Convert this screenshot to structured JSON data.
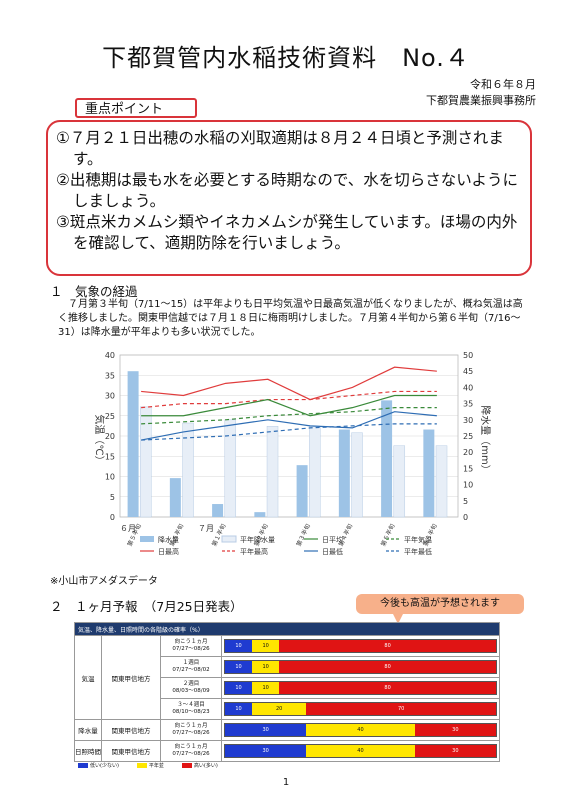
{
  "header": {
    "title": "下都賀管内水稲技術資料　No.４",
    "date": "令和６年８月",
    "org": "下都賀農業振興事務所"
  },
  "key_points": {
    "label": "重点ポイント",
    "items": [
      "①７月２１日出穂の水稲の刈取適期は８月２４日頃と予測されます。",
      "②出穂期は最も水を必要とする時期なので、水を切らさないようにしましょう。",
      "③斑点米カメムシ類やイネカメムシが発生しています。ほ場の内外を確認して、適期防除を行いましょう。"
    ]
  },
  "section1": {
    "heading": "１　気象の経過",
    "para1": "７月第３半旬（7/11～15）は平年よりも日平均気温や日最高気温が低くなりましたが、概ね気温は高く推移しました。関東甲信越では７月１８日に梅雨明けしました。７月第４半旬から第６半旬（7/16～31）は降水量が平年よりも多い状況でした。",
    "source": "※小山市アメダスデータ"
  },
  "chart_data": {
    "type": "bar+line",
    "categories": [
      "第５半旬",
      "第６半旬",
      "第１半旬",
      "第２半旬",
      "第３半旬",
      "第４半旬",
      "第５半旬",
      "第６半旬"
    ],
    "month_labels": [
      "６月",
      "７月"
    ],
    "ylabel_left": "気温（℃）",
    "ylabel_right": "降水量（mm）",
    "ylim_left": [
      0,
      40
    ],
    "ylim_right": [
      0,
      50
    ],
    "left_ticks": [
      "0",
      "5",
      "10",
      "15",
      "20",
      "25",
      "30",
      "35",
      "40"
    ],
    "right_ticks": [
      "0",
      "5",
      "10",
      "15",
      "20",
      "25",
      "30",
      "35",
      "40",
      "45",
      "50"
    ],
    "precip": [
      45,
      12,
      4,
      1.5,
      16,
      27,
      36,
      27
    ],
    "precip_normal": [
      34,
      29,
      30,
      28,
      28,
      26,
      22,
      22
    ],
    "tmax": [
      31,
      30,
      33,
      34,
      29,
      32,
      37,
      36
    ],
    "tmax_normal": [
      27,
      28,
      28,
      29,
      29,
      30,
      31,
      31
    ],
    "tavg": [
      25,
      25,
      27,
      29,
      25,
      27,
      30,
      30
    ],
    "tavg_normal": [
      23,
      23.5,
      24,
      25,
      25.5,
      26,
      27,
      27
    ],
    "tmin": [
      19,
      21,
      22.5,
      24,
      22.5,
      22,
      26,
      25
    ],
    "tmin_normal": [
      19,
      19.5,
      20,
      21,
      22,
      22.5,
      23,
      23
    ],
    "legend": [
      "降水量",
      "平年降水量",
      "日平均",
      "平年気温",
      "日最高",
      "平年最高",
      "日最低",
      "平年最低"
    ],
    "colors": {
      "precip": "#9dc3e6",
      "tmax": "#e03c3c",
      "tavg": "#3a8a3a",
      "tmin": "#2e6db4"
    }
  },
  "section2": {
    "heading": "２　１ヶ月予報　（7月25日発表）",
    "callout": "今後も高温が予想されます",
    "table_title": "気温、降水量、日照時間の各階級の確率（%）",
    "rows": [
      {
        "cat": "気温",
        "region": "関東甲信地方",
        "period": "向こう１ヵ月",
        "dates": "07/27～08/26",
        "low": 10,
        "normal": 10,
        "high": 80
      },
      {
        "cat": "",
        "region": "",
        "period": "１週目",
        "dates": "07/27～08/02",
        "low": 10,
        "normal": 10,
        "high": 80
      },
      {
        "cat": "",
        "region": "",
        "period": "２週目",
        "dates": "08/03～08/09",
        "low": 10,
        "normal": 10,
        "high": 80
      },
      {
        "cat": "",
        "region": "",
        "period": "３～４週目",
        "dates": "08/10～08/23",
        "low": 10,
        "normal": 20,
        "high": 70
      },
      {
        "cat": "降水量",
        "region": "関東甲信地方",
        "period": "向こう１ヵ月",
        "dates": "07/27～08/26",
        "low": 30,
        "normal": 40,
        "high": 30
      },
      {
        "cat": "日照時間",
        "region": "関東甲信地方",
        "period": "向こう１ヵ月",
        "dates": "07/27～08/26",
        "low": 30,
        "normal": 40,
        "high": 30
      }
    ],
    "legend": [
      "低い(少ない)",
      "平年並",
      "高い(多い)"
    ]
  },
  "page_number": "1"
}
